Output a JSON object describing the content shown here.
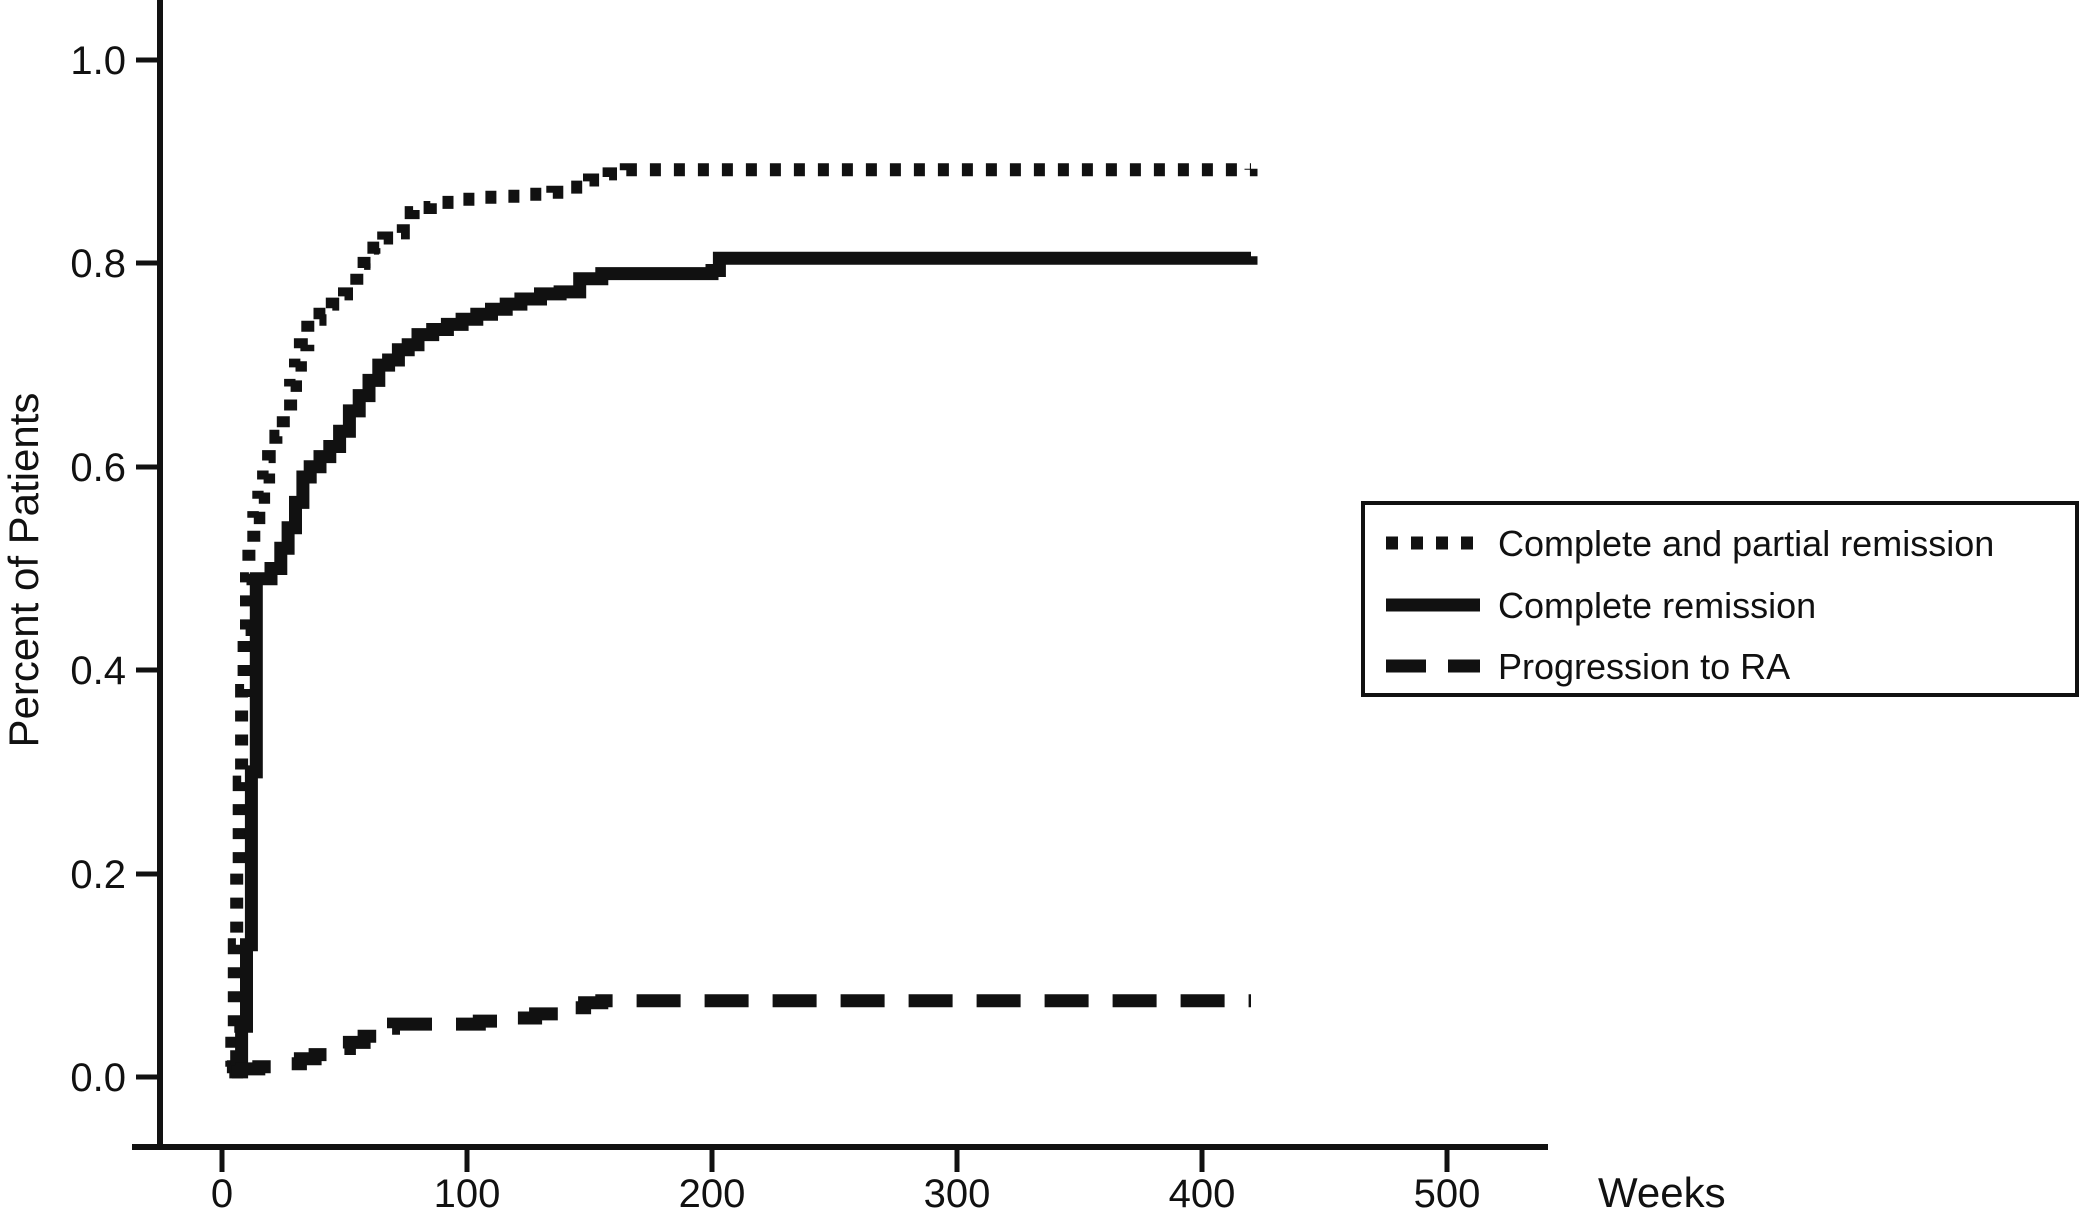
{
  "axes": {
    "ylabel": "Percent of Patients",
    "xlabel": "Weeks",
    "yticks": [
      "1.0",
      "0.8",
      "0.6",
      "0.4",
      "0.2",
      "0.0"
    ],
    "xticks": [
      "0",
      "100",
      "200",
      "300",
      "400",
      "500"
    ]
  },
  "legend": {
    "items": [
      {
        "label": "Complete and partial remission",
        "style": "dotted"
      },
      {
        "label": "Complete remission",
        "style": "solid"
      },
      {
        "label": "Progression to RA",
        "style": "dashed"
      }
    ]
  },
  "colors": {
    "line": "#111111",
    "background": "#ffffff"
  },
  "chart_data": {
    "type": "line",
    "title": "",
    "xlabel": "Weeks",
    "ylabel": "Percent of Patients",
    "xlim": [
      0,
      560
    ],
    "ylim": [
      0,
      1.05
    ],
    "xticks": [
      0,
      100,
      200,
      300,
      400,
      500
    ],
    "yticks": [
      0.0,
      0.2,
      0.4,
      0.6,
      0.8,
      1.0
    ],
    "step": "post",
    "legend_position": "right",
    "grid": false,
    "series": [
      {
        "name": "Complete and partial remission",
        "style": "dotted",
        "x": [
          2,
          4,
          5,
          6,
          7,
          8,
          9,
          10,
          11,
          13,
          15,
          17,
          19,
          22,
          25,
          28,
          30,
          32,
          35,
          40,
          45,
          50,
          55,
          58,
          62,
          66,
          70,
          74,
          78,
          85,
          95,
          105,
          115,
          125,
          135,
          142,
          150,
          158,
          165,
          420
        ],
        "y": [
          0.01,
          0.05,
          0.13,
          0.2,
          0.29,
          0.38,
          0.44,
          0.49,
          0.52,
          0.55,
          0.57,
          0.59,
          0.61,
          0.63,
          0.65,
          0.68,
          0.7,
          0.72,
          0.745,
          0.75,
          0.76,
          0.77,
          0.79,
          0.8,
          0.815,
          0.825,
          0.83,
          0.85,
          0.855,
          0.86,
          0.863,
          0.865,
          0.866,
          0.868,
          0.87,
          0.875,
          0.882,
          0.888,
          0.892,
          0.893
        ]
      },
      {
        "name": "Complete remission",
        "style": "solid",
        "x": [
          3,
          6,
          8,
          10,
          12,
          14,
          20,
          24,
          27,
          30,
          33,
          36,
          40,
          44,
          48,
          52,
          56,
          60,
          64,
          68,
          72,
          76,
          80,
          86,
          92,
          98,
          104,
          110,
          116,
          122,
          130,
          138,
          146,
          155,
          200,
          203,
          420
        ],
        "y": [
          0.005,
          0.02,
          0.05,
          0.13,
          0.3,
          0.49,
          0.5,
          0.52,
          0.54,
          0.565,
          0.59,
          0.6,
          0.61,
          0.62,
          0.635,
          0.655,
          0.67,
          0.685,
          0.7,
          0.705,
          0.715,
          0.72,
          0.73,
          0.735,
          0.74,
          0.745,
          0.75,
          0.755,
          0.76,
          0.765,
          0.77,
          0.772,
          0.785,
          0.79,
          0.793,
          0.805,
          0.807
        ]
      },
      {
        "name": "Progression to RA",
        "style": "dashed",
        "x": [
          4,
          8,
          15,
          25,
          32,
          38,
          45,
          52,
          58,
          64,
          70,
          90,
          105,
          118,
          128,
          138,
          148,
          155,
          420
        ],
        "y": [
          0.005,
          0.008,
          0.01,
          0.013,
          0.018,
          0.022,
          0.028,
          0.034,
          0.04,
          0.048,
          0.052,
          0.052,
          0.055,
          0.058,
          0.062,
          0.068,
          0.073,
          0.075,
          0.075
        ]
      }
    ]
  }
}
